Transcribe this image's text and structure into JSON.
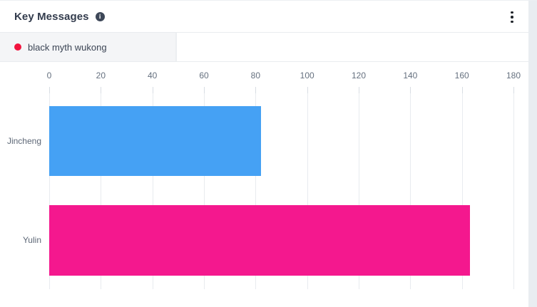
{
  "header": {
    "title": "Key Messages"
  },
  "tabs": [
    {
      "label": "black myth wukong"
    }
  ],
  "colors": {
    "accent_red": "#f2143e",
    "bar_blue": "#45a1f4",
    "bar_pink": "#f4188e",
    "title_text": "#333c4d",
    "axis_text": "#65707f",
    "gridline": "#e8ebef",
    "tab_background": "#f4f5f7",
    "border": "#e9ecef",
    "scrollbar_track": "#e9edf1"
  },
  "chart_data": {
    "type": "bar",
    "orientation": "horizontal",
    "title": "Key Messages",
    "categories": [
      "Jincheng",
      "Yulin"
    ],
    "series": [
      {
        "name": "black myth wukong",
        "values": [
          82,
          163
        ]
      }
    ],
    "bar_colors": [
      "#45a1f4",
      "#f4188e"
    ],
    "xlabel": "",
    "ylabel": "",
    "xlim": [
      0,
      180
    ],
    "xticks": [
      0,
      20,
      40,
      60,
      80,
      100,
      120,
      140,
      160,
      180
    ],
    "axis_position": "top",
    "grid": true,
    "legend_position": "top-left-tab"
  }
}
